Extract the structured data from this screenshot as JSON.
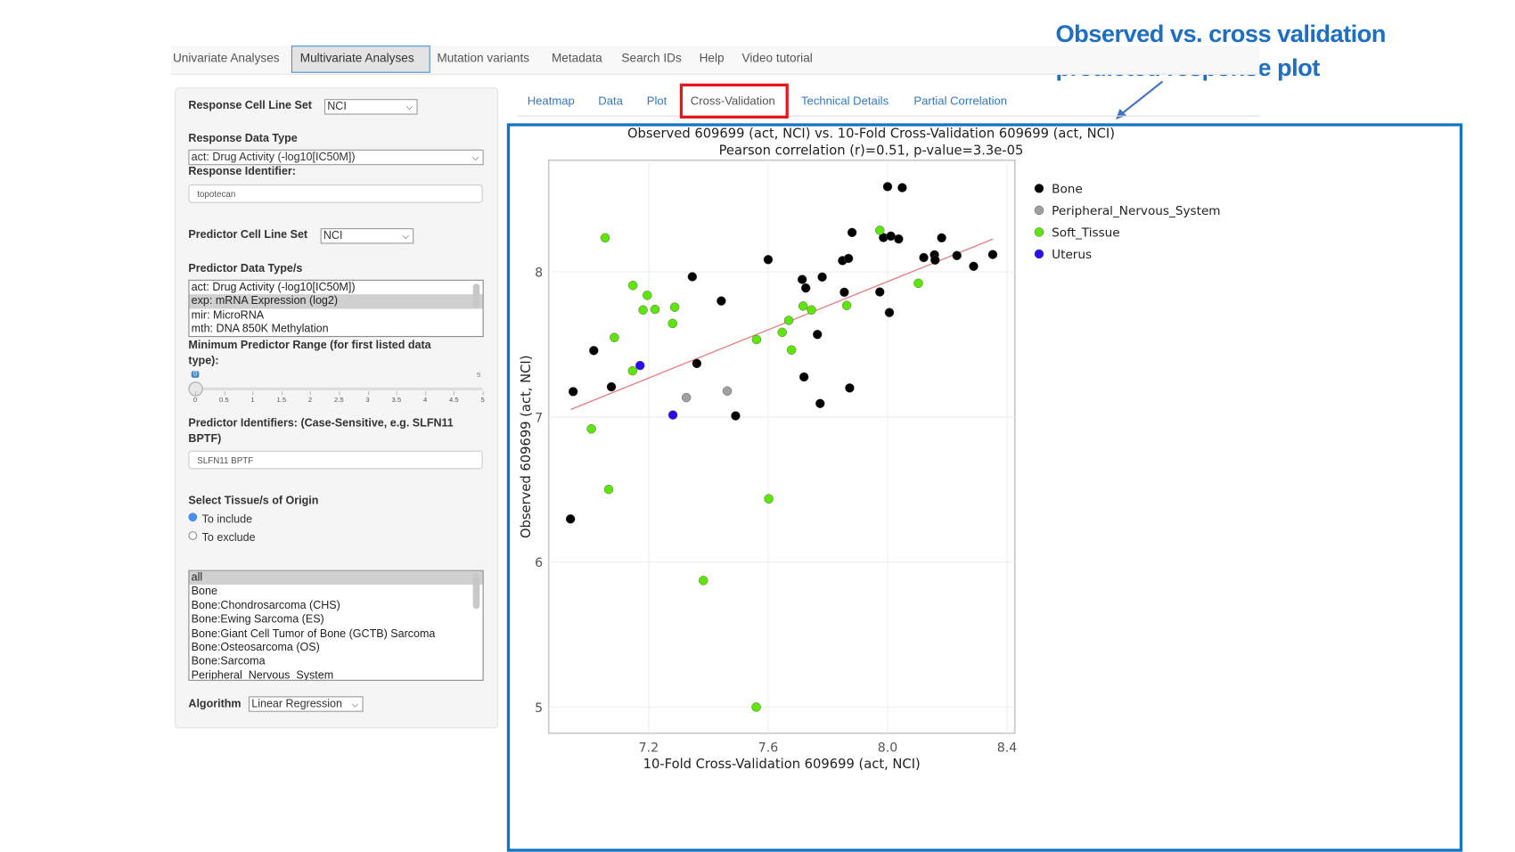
{
  "annotation": {
    "line1": "Observed vs. cross validation",
    "line2": "predicted response plot",
    "color": "#1f6fc0"
  },
  "nav": {
    "items": [
      "Univariate Analyses",
      "Multivariate Analyses",
      "Mutation variants",
      "Metadata",
      "Search IDs",
      "Help",
      "Video tutorial"
    ],
    "active": "Multivariate Analyses"
  },
  "subtabs": {
    "items": [
      "Heatmap",
      "Data",
      "Plot",
      "Cross-Validation",
      "Technical Details",
      "Partial Correlation"
    ],
    "active": "Cross-Validation"
  },
  "sidebar": {
    "response_cell_line_set": {
      "label": "Response Cell Line Set",
      "value": "NCI"
    },
    "response_data_type": {
      "label": "Response Data Type",
      "value": "act: Drug Activity (-log10[IC50M])"
    },
    "response_identifier": {
      "label": "Response Identifier:",
      "value": "topotecan"
    },
    "predictor_cell_line_set": {
      "label": "Predictor Cell Line Set",
      "value": "NCI"
    },
    "predictor_data_types": {
      "label": "Predictor Data Type/s",
      "options": [
        "act: Drug Activity (-log10[IC50M])",
        "exp: mRNA Expression (log2)",
        "mir: MicroRNA",
        "mth: DNA 850K Methylation"
      ],
      "selected": "exp: mRNA Expression (log2)"
    },
    "min_predictor_range": {
      "label_line1": "Minimum Predictor Range (for first listed data",
      "label_line2": "type):",
      "value": 0,
      "value_label": "0",
      "min": 0,
      "max": 5,
      "max_label": "5",
      "tick_labels": [
        "0",
        "0.5",
        "1",
        "1.5",
        "2",
        "2.5",
        "3",
        "3.5",
        "4",
        "4.5",
        "5"
      ]
    },
    "predictor_identifiers": {
      "label_line1": "Predictor Identifiers: (Case-Sensitive, e.g. SLFN11",
      "label_line2": "BPTF)",
      "value": "SLFN11 BPTF"
    },
    "tissue": {
      "label": "Select Tissue/s of Origin",
      "radio_include": "To include",
      "radio_exclude": "To exclude",
      "radio_selected": "To include",
      "options": [
        "all",
        "Bone",
        "Bone:Chondrosarcoma (CHS)",
        "Bone:Ewing Sarcoma (ES)",
        "Bone:Giant Cell Tumor of Bone (GCTB) Sarcoma",
        "Bone:Osteosarcoma (OS)",
        "Bone:Sarcoma",
        "Peripheral_Nervous_System"
      ],
      "selected": "all"
    },
    "algorithm": {
      "label": "Algorithm",
      "value": "Linear Regression"
    }
  },
  "chart_data": {
    "type": "scatter",
    "title": "Observed 609699 (act, NCI) vs. 10-Fold Cross-Validation 609699 (act, NCI)",
    "subtitle": "Pearson correlation (r)=0.51, p-value=3.3e-05",
    "xlabel": "10-Fold Cross-Validation 609699 (act, NCI)",
    "ylabel": "Observed 609699 (act, NCI)",
    "xlim": [
      6.865,
      8.426
    ],
    "ylim": [
      4.82,
      8.77
    ],
    "xticks": [
      7.2,
      7.6,
      8.0,
      8.4
    ],
    "xtick_labels": [
      "7.2",
      "7.6",
      "8.0",
      "8.4"
    ],
    "yticks": [
      5,
      6,
      7,
      8
    ],
    "ytick_labels": [
      "5",
      "6",
      "7",
      "8"
    ],
    "grid": true,
    "legend_position": "right",
    "fit_line": {
      "x": [
        6.939,
        8.353
      ],
      "y": [
        7.052,
        8.227
      ],
      "color": "#e8868a"
    },
    "series": [
      {
        "name": "Bone",
        "color": "#000000",
        "x": [
          8.0,
          8.049,
          7.881,
          7.986,
          8.011,
          8.037,
          8.181,
          7.6,
          7.849,
          7.869,
          8.121,
          8.157,
          8.159,
          8.232,
          8.288,
          8.352,
          7.346,
          7.714,
          7.726,
          7.781,
          7.855,
          7.443,
          7.974,
          8.006,
          7.765,
          7.016,
          7.361,
          7.72,
          6.947,
          7.075,
          7.873,
          7.774,
          7.491,
          6.938
        ],
        "y": [
          8.588,
          8.581,
          8.272,
          8.237,
          8.247,
          8.227,
          8.235,
          8.085,
          8.078,
          8.093,
          8.099,
          8.118,
          8.082,
          8.113,
          8.039,
          8.12,
          7.967,
          7.948,
          7.889,
          7.965,
          7.86,
          7.8,
          7.862,
          7.72,
          7.569,
          7.458,
          7.369,
          7.276,
          7.175,
          7.208,
          7.2,
          7.093,
          7.008,
          6.297
        ]
      },
      {
        "name": "Peripheral_Nervous_System",
        "color": "#a0a0a0",
        "x": [
          7.326,
          7.463
        ],
        "y": [
          7.134,
          7.179
        ]
      },
      {
        "name": "Soft_Tissue",
        "color": "#5ee60a",
        "x": [
          7.054,
          7.974,
          7.147,
          7.195,
          7.181,
          7.221,
          7.287,
          7.28,
          7.085,
          7.146,
          7.008,
          7.561,
          7.647,
          7.669,
          7.717,
          7.745,
          7.678,
          7.863,
          8.103,
          7.066,
          7.602,
          7.383,
          7.56
        ],
        "y": [
          8.235,
          8.287,
          7.907,
          7.839,
          7.738,
          7.742,
          7.757,
          7.645,
          7.548,
          7.318,
          6.918,
          7.534,
          7.584,
          7.666,
          7.765,
          7.738,
          7.462,
          7.769,
          7.922,
          6.501,
          6.436,
          5.873,
          5.0
        ]
      },
      {
        "name": "Uterus",
        "color": "#2a0ef0",
        "x": [
          7.171,
          7.281
        ],
        "y": [
          7.355,
          7.014
        ]
      }
    ]
  }
}
